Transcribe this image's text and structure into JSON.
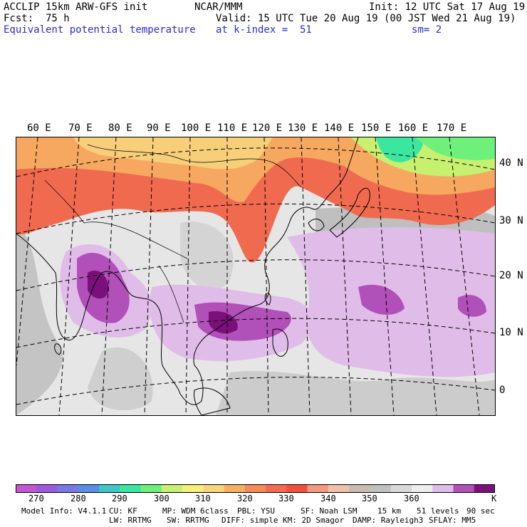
{
  "header": {
    "title": "ACCLIP 15km ARW-GFS init",
    "org": "NCAR/MMM",
    "init": "Init: 12 UTC Sat 17 Aug 19",
    "fcst_label": "Fcst:",
    "fcst_value": "75 h",
    "valid": "Valid: 15 UTC Tue 20 Aug 19 (00 JST Wed 21 Aug 19)",
    "field": "Equivalent potential temperature",
    "level": "at k-index =  51",
    "smooth": "sm= 2"
  },
  "map": {
    "lon_labels": [
      "60 E",
      "70 E",
      "80 E",
      "90 E",
      "100 E",
      "110 E",
      "120 E",
      "130 E",
      "140 E",
      "150 E",
      "160 E",
      "170 E"
    ],
    "lat_labels": [
      "40 N",
      "30 N",
      "20 N",
      "10 N",
      "0"
    ]
  },
  "colorbar": {
    "colors": [
      "#c655d6",
      "#9a5be0",
      "#7a78e8",
      "#5a8de8",
      "#3fc6c6",
      "#3ae6a0",
      "#6ef07a",
      "#c8f070",
      "#f5f07a",
      "#f7d57a",
      "#f7b060",
      "#f78a55",
      "#f56a50",
      "#f2503e",
      "#f29a80",
      "#f0c0a8",
      "#c8bcb0",
      "#c0c0c0",
      "#d8d8d8",
      "#eeeeee",
      "#e0bce8",
      "#b050b8",
      "#7a107a"
    ],
    "ticks": [
      "270",
      "280",
      "290",
      "300",
      "310",
      "320",
      "330",
      "340",
      "350",
      "360"
    ],
    "unit": "K"
  },
  "footer": {
    "line1": [
      "Model Info: V4.1.1",
      "CU: KF",
      "MP: WDM 6class",
      "PBL: YSU",
      "SF: Noah LSM",
      "15 km",
      "51 levels",
      "90 sec"
    ],
    "line2": [
      "LW: RRTMG",
      "SW: RRTMG",
      "DIFF: simple",
      "KM: 2D Smagor",
      "DAMP: Rayleigh3",
      "SFLAY: MM5"
    ]
  }
}
